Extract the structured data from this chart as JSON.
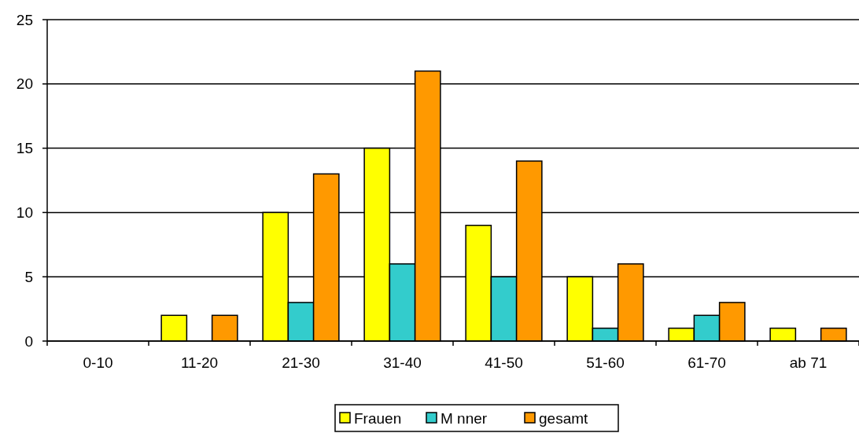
{
  "chart_data": {
    "type": "bar",
    "categories": [
      "0-10",
      "11-20",
      "21-30",
      "31-40",
      "41-50",
      "51-60",
      "61-70",
      "ab 71"
    ],
    "series": [
      {
        "name": "Frauen",
        "color": "#ffff00",
        "values": [
          0,
          2,
          10,
          15,
          9,
          5,
          1,
          1
        ]
      },
      {
        "name": "M  nner",
        "color": "#33cccc",
        "values": [
          0,
          0,
          3,
          6,
          5,
          1,
          2,
          0
        ]
      },
      {
        "name": "gesamt",
        "color": "#ff9900",
        "values": [
          0,
          2,
          13,
          21,
          14,
          6,
          3,
          1
        ]
      }
    ],
    "ylim": [
      0,
      25
    ],
    "yticks": [
      0,
      5,
      10,
      15,
      20,
      25
    ],
    "grid": "y",
    "legend": "bottom"
  }
}
